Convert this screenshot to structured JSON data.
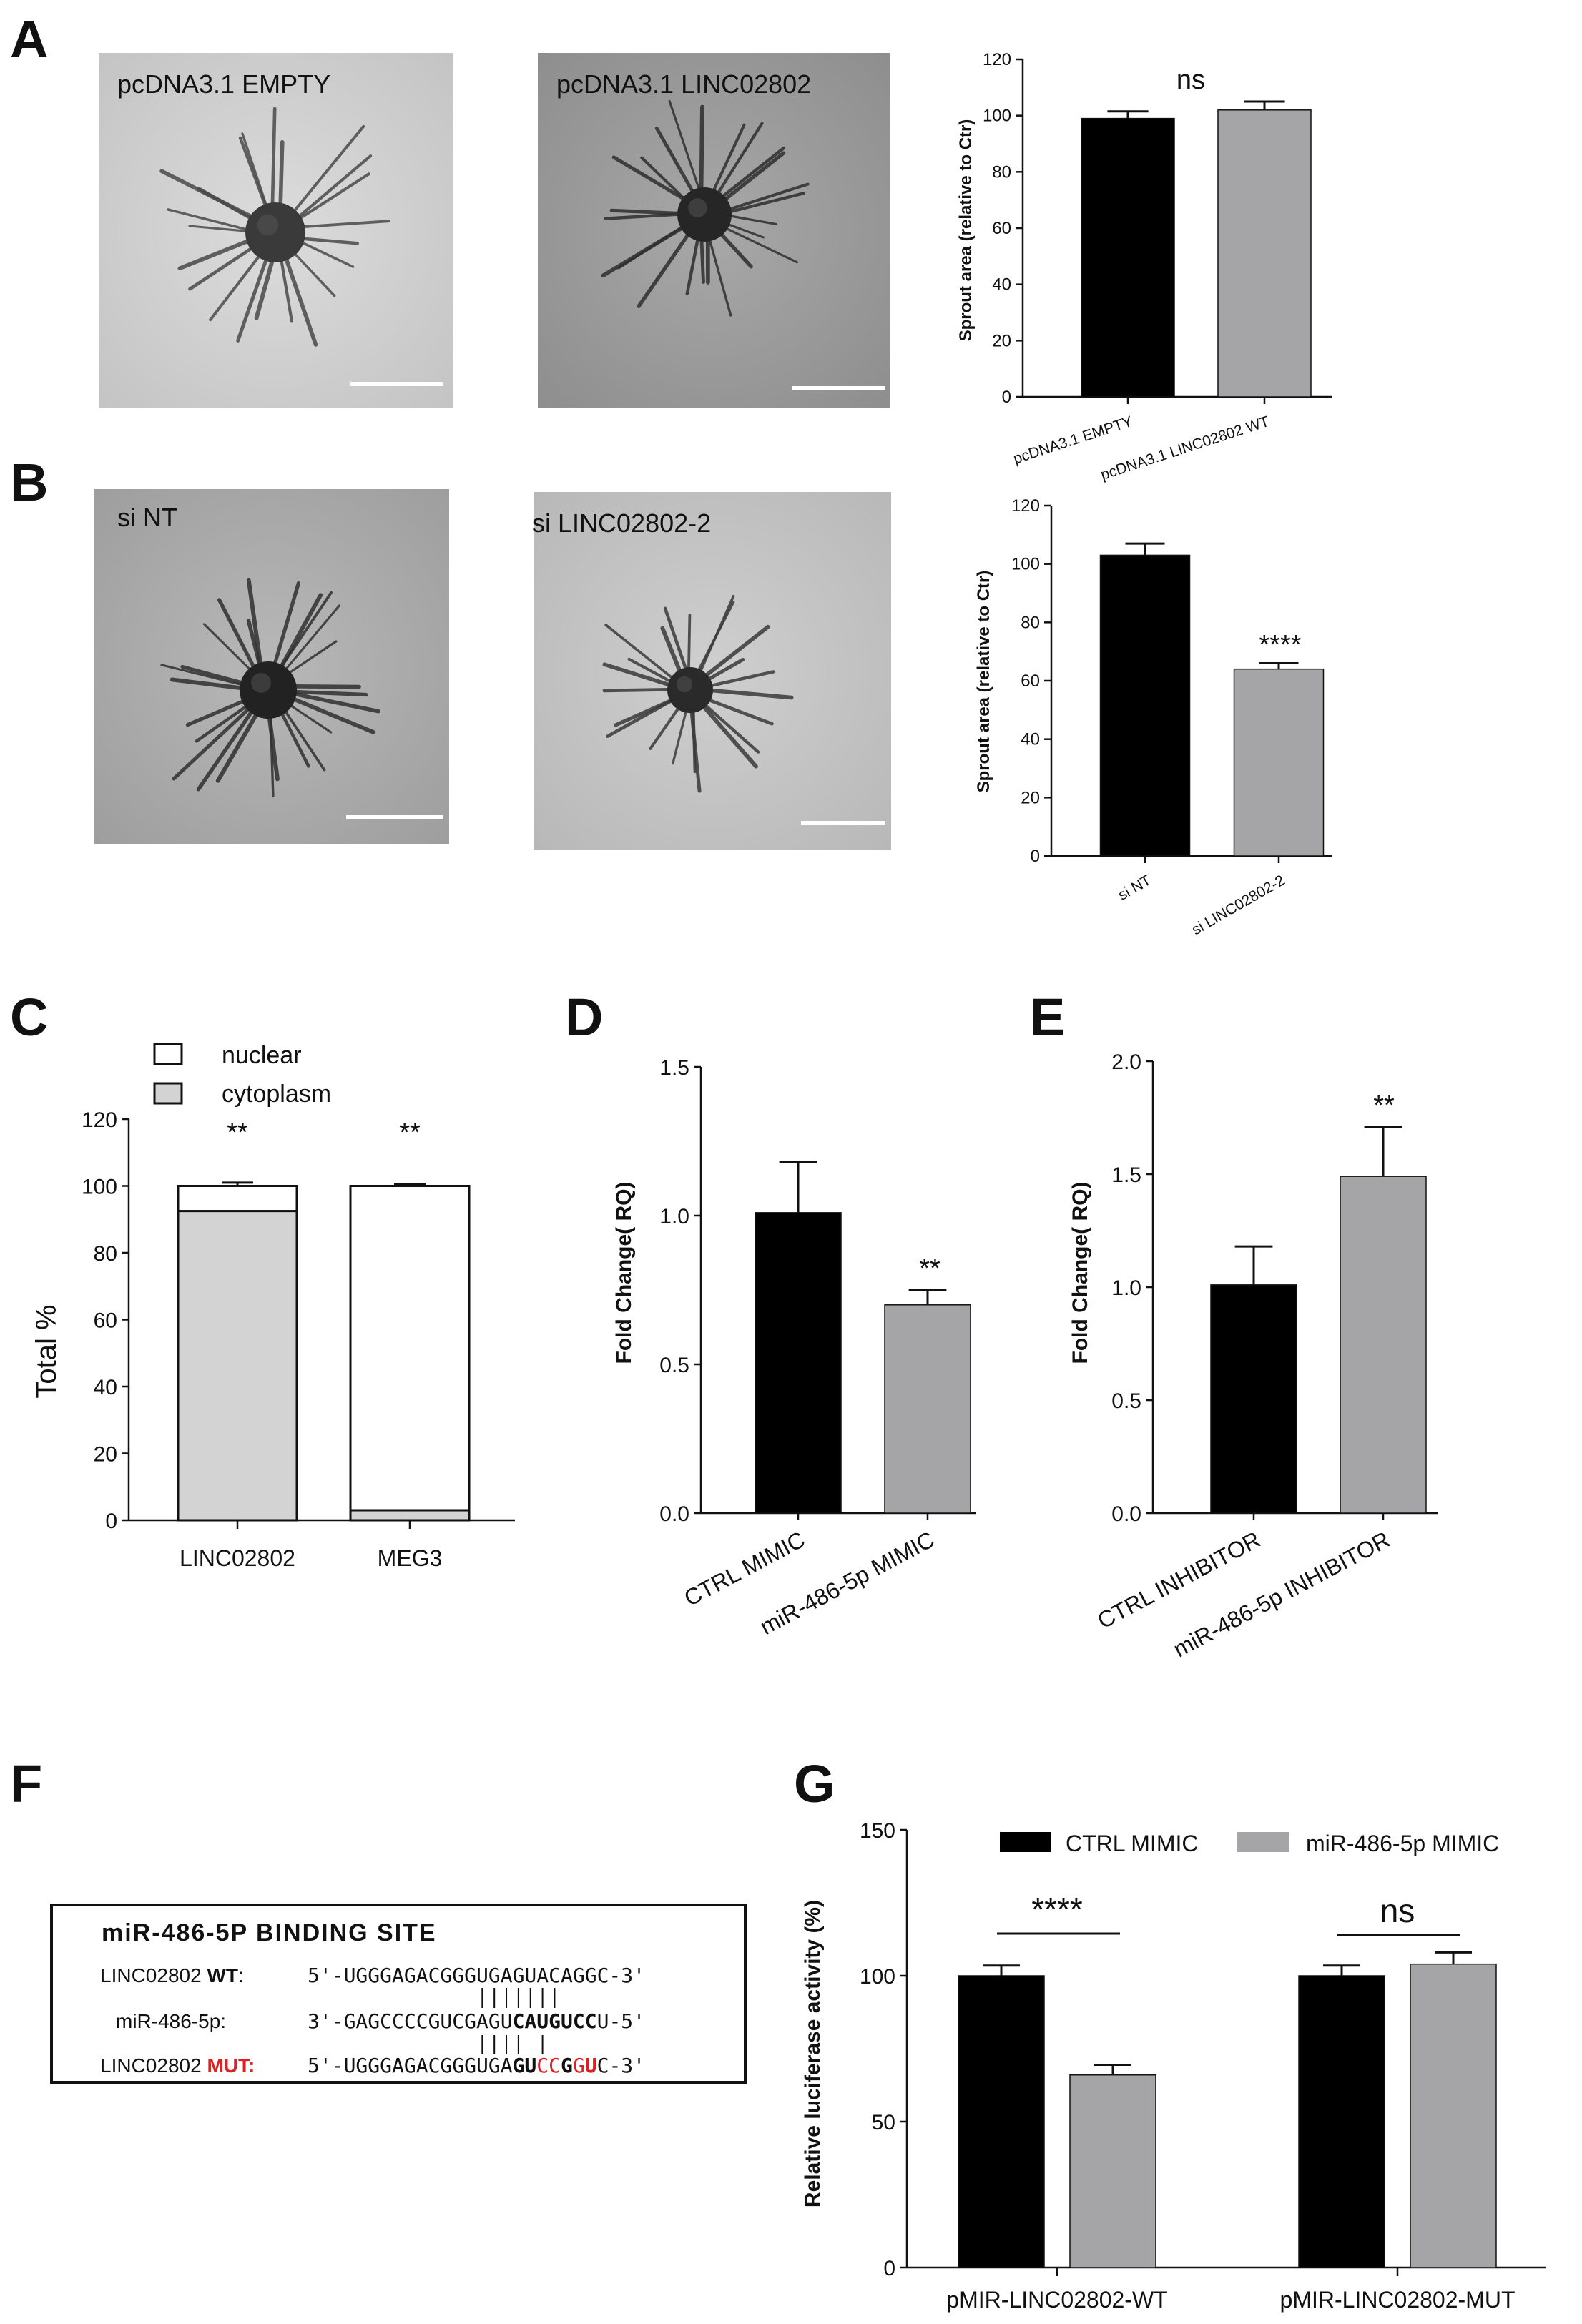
{
  "panel_labels": {
    "a": "A",
    "b": "B",
    "c": "C",
    "d": "D",
    "e": "E",
    "f": "F",
    "g": "G"
  },
  "images": {
    "a1": "pcDNA3.1 EMPTY",
    "a2": "pcDNA3.1 LINC02802",
    "b1": "si NT",
    "b2": "si LINC02802-2"
  },
  "colors": {
    "black_bar": "#000000",
    "gray_bar": "#a5a5a8",
    "light_gray": "#d3d3d3",
    "mut_red": "#e02020"
  },
  "binding_site": {
    "title": "miR-486-5P BINDING SITE",
    "wt_label_prefix": "LINC02802 ",
    "wt_label_bold": "WT",
    "wt_label_suffix": ":",
    "wt_seq_a": "5'-UGGGAGACGGGUGAGUACAGGC-3'",
    "mir_label": "miR-486-5p:",
    "mir_seq_a": "3'-GAGCCCCGUCGAGU",
    "mir_seq_bold": "CAUGUCC",
    "mir_seq_b": "U-5'",
    "mut_label_prefix": "LINC02802 ",
    "mut_label_red": "MUT:",
    "mut_seq": [
      {
        "t": "5'-UGGGAGACGGGUGA",
        "s": "n"
      },
      {
        "t": "GU",
        "s": "b"
      },
      {
        "t": "CC",
        "s": "r"
      },
      {
        "t": "G",
        "s": "b"
      },
      {
        "t": "G",
        "s": "r"
      },
      {
        "t": "U",
        "s": "rb"
      },
      {
        "t": "C-3'",
        "s": "n"
      }
    ]
  },
  "chart_data": [
    {
      "id": "A",
      "type": "bar",
      "categories": [
        "pcDNA3.1 EMPTY",
        "pcDNA3.1 LINC02802 WT"
      ],
      "values": [
        99,
        102
      ],
      "errors": [
        2.5,
        3
      ],
      "colors": [
        "#000000",
        "#a5a5a8"
      ],
      "ylabel": "Sprout area (relative to Ctr)",
      "ylim": [
        0,
        120
      ],
      "yticks": [
        0,
        20,
        40,
        60,
        80,
        100,
        120
      ],
      "significance": "ns"
    },
    {
      "id": "B",
      "type": "bar",
      "categories": [
        "si NT",
        "si LINC02802-2"
      ],
      "values": [
        103,
        64
      ],
      "errors": [
        4,
        2
      ],
      "colors": [
        "#000000",
        "#a5a5a8"
      ],
      "ylabel": "Sprout area (relative to Ctr)",
      "ylim": [
        0,
        120
      ],
      "yticks": [
        0,
        20,
        40,
        60,
        80,
        100,
        120
      ],
      "significance": "****"
    },
    {
      "id": "C",
      "type": "bar",
      "stacked": true,
      "categories": [
        "LINC02802",
        "MEG3"
      ],
      "series": [
        {
          "name": "cytoplasm",
          "values": [
            92.5,
            3
          ],
          "color": "#d3d3d3",
          "errors": [
            1.2,
            0.8
          ]
        },
        {
          "name": "nuclear",
          "values": [
            7.5,
            97
          ],
          "color": "#ffffff",
          "errors": [
            1,
            0.5
          ]
        }
      ],
      "ylabel": "Total %",
      "ylim": [
        0,
        120
      ],
      "yticks": [
        0,
        20,
        40,
        60,
        80,
        100,
        120
      ],
      "significance": [
        "**",
        "**"
      ],
      "legend": "top-left"
    },
    {
      "id": "D",
      "type": "bar",
      "categories": [
        "CTRL MIMIC",
        "miR-486-5p MIMIC"
      ],
      "values": [
        1.01,
        0.7
      ],
      "errors": [
        0.17,
        0.05
      ],
      "colors": [
        "#000000",
        "#a5a5a8"
      ],
      "ylabel": "Fold Change( RQ)",
      "ylim": [
        0,
        1.5
      ],
      "yticks": [
        "0.0",
        "0.5",
        "1.0",
        "1.5"
      ],
      "significance": "**"
    },
    {
      "id": "E",
      "type": "bar",
      "categories": [
        "CTRL INHIBITOR",
        "miR-486-5p INHIBITOR"
      ],
      "values": [
        1.01,
        1.49
      ],
      "errors": [
        0.17,
        0.22
      ],
      "colors": [
        "#000000",
        "#a5a5a8"
      ],
      "ylabel": "Fold Change( RQ)",
      "ylim": [
        0,
        2.0
      ],
      "yticks": [
        "0.0",
        "0.5",
        "1.0",
        "1.5",
        "2.0"
      ],
      "significance": "**"
    },
    {
      "id": "G",
      "type": "bar",
      "categories": [
        "pMIR-LINC02802-WT",
        "pMIR-LINC02802-MUT"
      ],
      "series": [
        {
          "name": "CTRL MIMIC",
          "values": [
            100,
            100
          ],
          "errors": [
            3.5,
            3.5
          ],
          "color": "#000000"
        },
        {
          "name": "miR-486-5p MIMIC",
          "values": [
            66,
            104
          ],
          "errors": [
            3.5,
            4
          ],
          "color": "#a5a5a8"
        }
      ],
      "ylabel": "Relative luciferase activity (%)",
      "ylim": [
        0,
        150
      ],
      "yticks": [
        0,
        50,
        100,
        150
      ],
      "significance": [
        "****",
        "ns"
      ],
      "legend": "top"
    }
  ]
}
